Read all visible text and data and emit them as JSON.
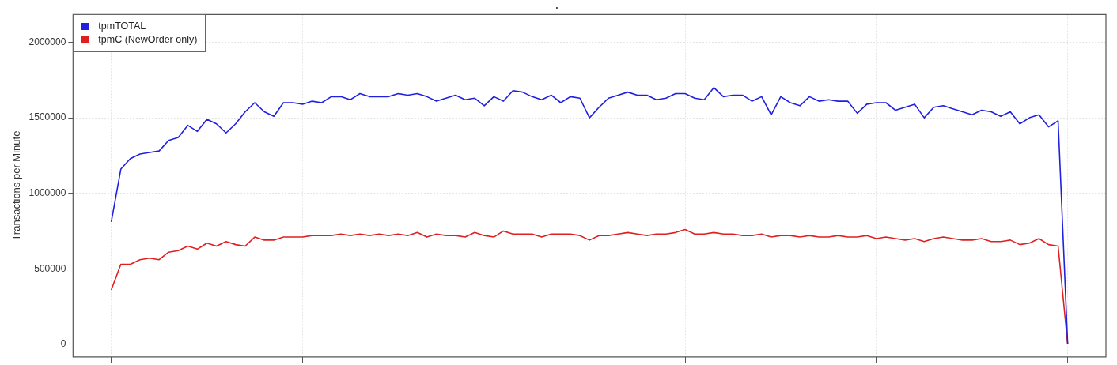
{
  "chart_data": {
    "type": "line",
    "title": ".",
    "ylabel": "Transactions per Minute",
    "categories": [
      null,
      null,
      null,
      null,
      null,
      null,
      null,
      null,
      null,
      null,
      null,
      null,
      null,
      null,
      null,
      null,
      null,
      null,
      null,
      null,
      null,
      null,
      null,
      null,
      null,
      null,
      null,
      null,
      null,
      null,
      null,
      null,
      null,
      null,
      null,
      null,
      null,
      null,
      null,
      null,
      null,
      null,
      null,
      null,
      null,
      null,
      null,
      null,
      null,
      null,
      null,
      null,
      null,
      null,
      null,
      null,
      null,
      null,
      null,
      null,
      null,
      null,
      null,
      null,
      null,
      null,
      null,
      null,
      null,
      null,
      null,
      null,
      null,
      null,
      null,
      null,
      null,
      null,
      null,
      null,
      null,
      null,
      null,
      null,
      null,
      null,
      null,
      null,
      null,
      null,
      null,
      null,
      null,
      null,
      null,
      null,
      null,
      null,
      null,
      null,
      null
    ],
    "ylim": [
      -84000,
      2184000
    ],
    "yticks": [
      0,
      500000,
      1000000,
      1500000,
      2000000
    ],
    "grid": true,
    "legend": "top left",
    "tick_labels": "y",
    "line_style": "solid",
    "series": [
      {
        "name": "tpmTOTAL",
        "color": "#2020e0",
        "values": [
          810000,
          1160000,
          1230000,
          1260000,
          1270000,
          1280000,
          1350000,
          1370000,
          1450000,
          1410000,
          1490000,
          1460000,
          1400000,
          1460000,
          1540000,
          1600000,
          1540000,
          1510000,
          1600000,
          1600000,
          1590000,
          1610000,
          1600000,
          1640000,
          1640000,
          1620000,
          1660000,
          1640000,
          1640000,
          1640000,
          1660000,
          1650000,
          1660000,
          1640000,
          1610000,
          1630000,
          1650000,
          1620000,
          1630000,
          1580000,
          1640000,
          1610000,
          1680000,
          1670000,
          1640000,
          1620000,
          1650000,
          1600000,
          1640000,
          1630000,
          1500000,
          1570000,
          1630000,
          1650000,
          1670000,
          1650000,
          1650000,
          1620000,
          1630000,
          1660000,
          1660000,
          1630000,
          1620000,
          1700000,
          1640000,
          1650000,
          1650000,
          1610000,
          1640000,
          1520000,
          1640000,
          1600000,
          1580000,
          1640000,
          1610000,
          1620000,
          1610000,
          1610000,
          1530000,
          1590000,
          1600000,
          1600000,
          1550000,
          1570000,
          1590000,
          1500000,
          1570000,
          1580000,
          1560000,
          1540000,
          1520000,
          1550000,
          1540000,
          1510000,
          1540000,
          1460000,
          1500000,
          1520000,
          1440000,
          1480000,
          0
        ]
      },
      {
        "name": "tpmC (NewOrder only)",
        "color": "#e02020",
        "values": [
          360000,
          530000,
          530000,
          560000,
          570000,
          560000,
          610000,
          620000,
          650000,
          630000,
          670000,
          650000,
          680000,
          660000,
          650000,
          710000,
          690000,
          690000,
          710000,
          710000,
          710000,
          720000,
          720000,
          720000,
          730000,
          720000,
          730000,
          720000,
          730000,
          720000,
          730000,
          720000,
          740000,
          710000,
          730000,
          720000,
          720000,
          710000,
          740000,
          720000,
          710000,
          750000,
          730000,
          730000,
          730000,
          710000,
          730000,
          730000,
          730000,
          720000,
          690000,
          720000,
          720000,
          730000,
          740000,
          730000,
          720000,
          730000,
          730000,
          740000,
          760000,
          730000,
          730000,
          740000,
          730000,
          730000,
          720000,
          720000,
          730000,
          710000,
          720000,
          720000,
          710000,
          720000,
          710000,
          710000,
          720000,
          710000,
          710000,
          720000,
          700000,
          710000,
          700000,
          690000,
          700000,
          680000,
          700000,
          710000,
          700000,
          690000,
          690000,
          700000,
          680000,
          680000,
          690000,
          660000,
          670000,
          700000,
          660000,
          650000,
          0
        ]
      }
    ]
  }
}
